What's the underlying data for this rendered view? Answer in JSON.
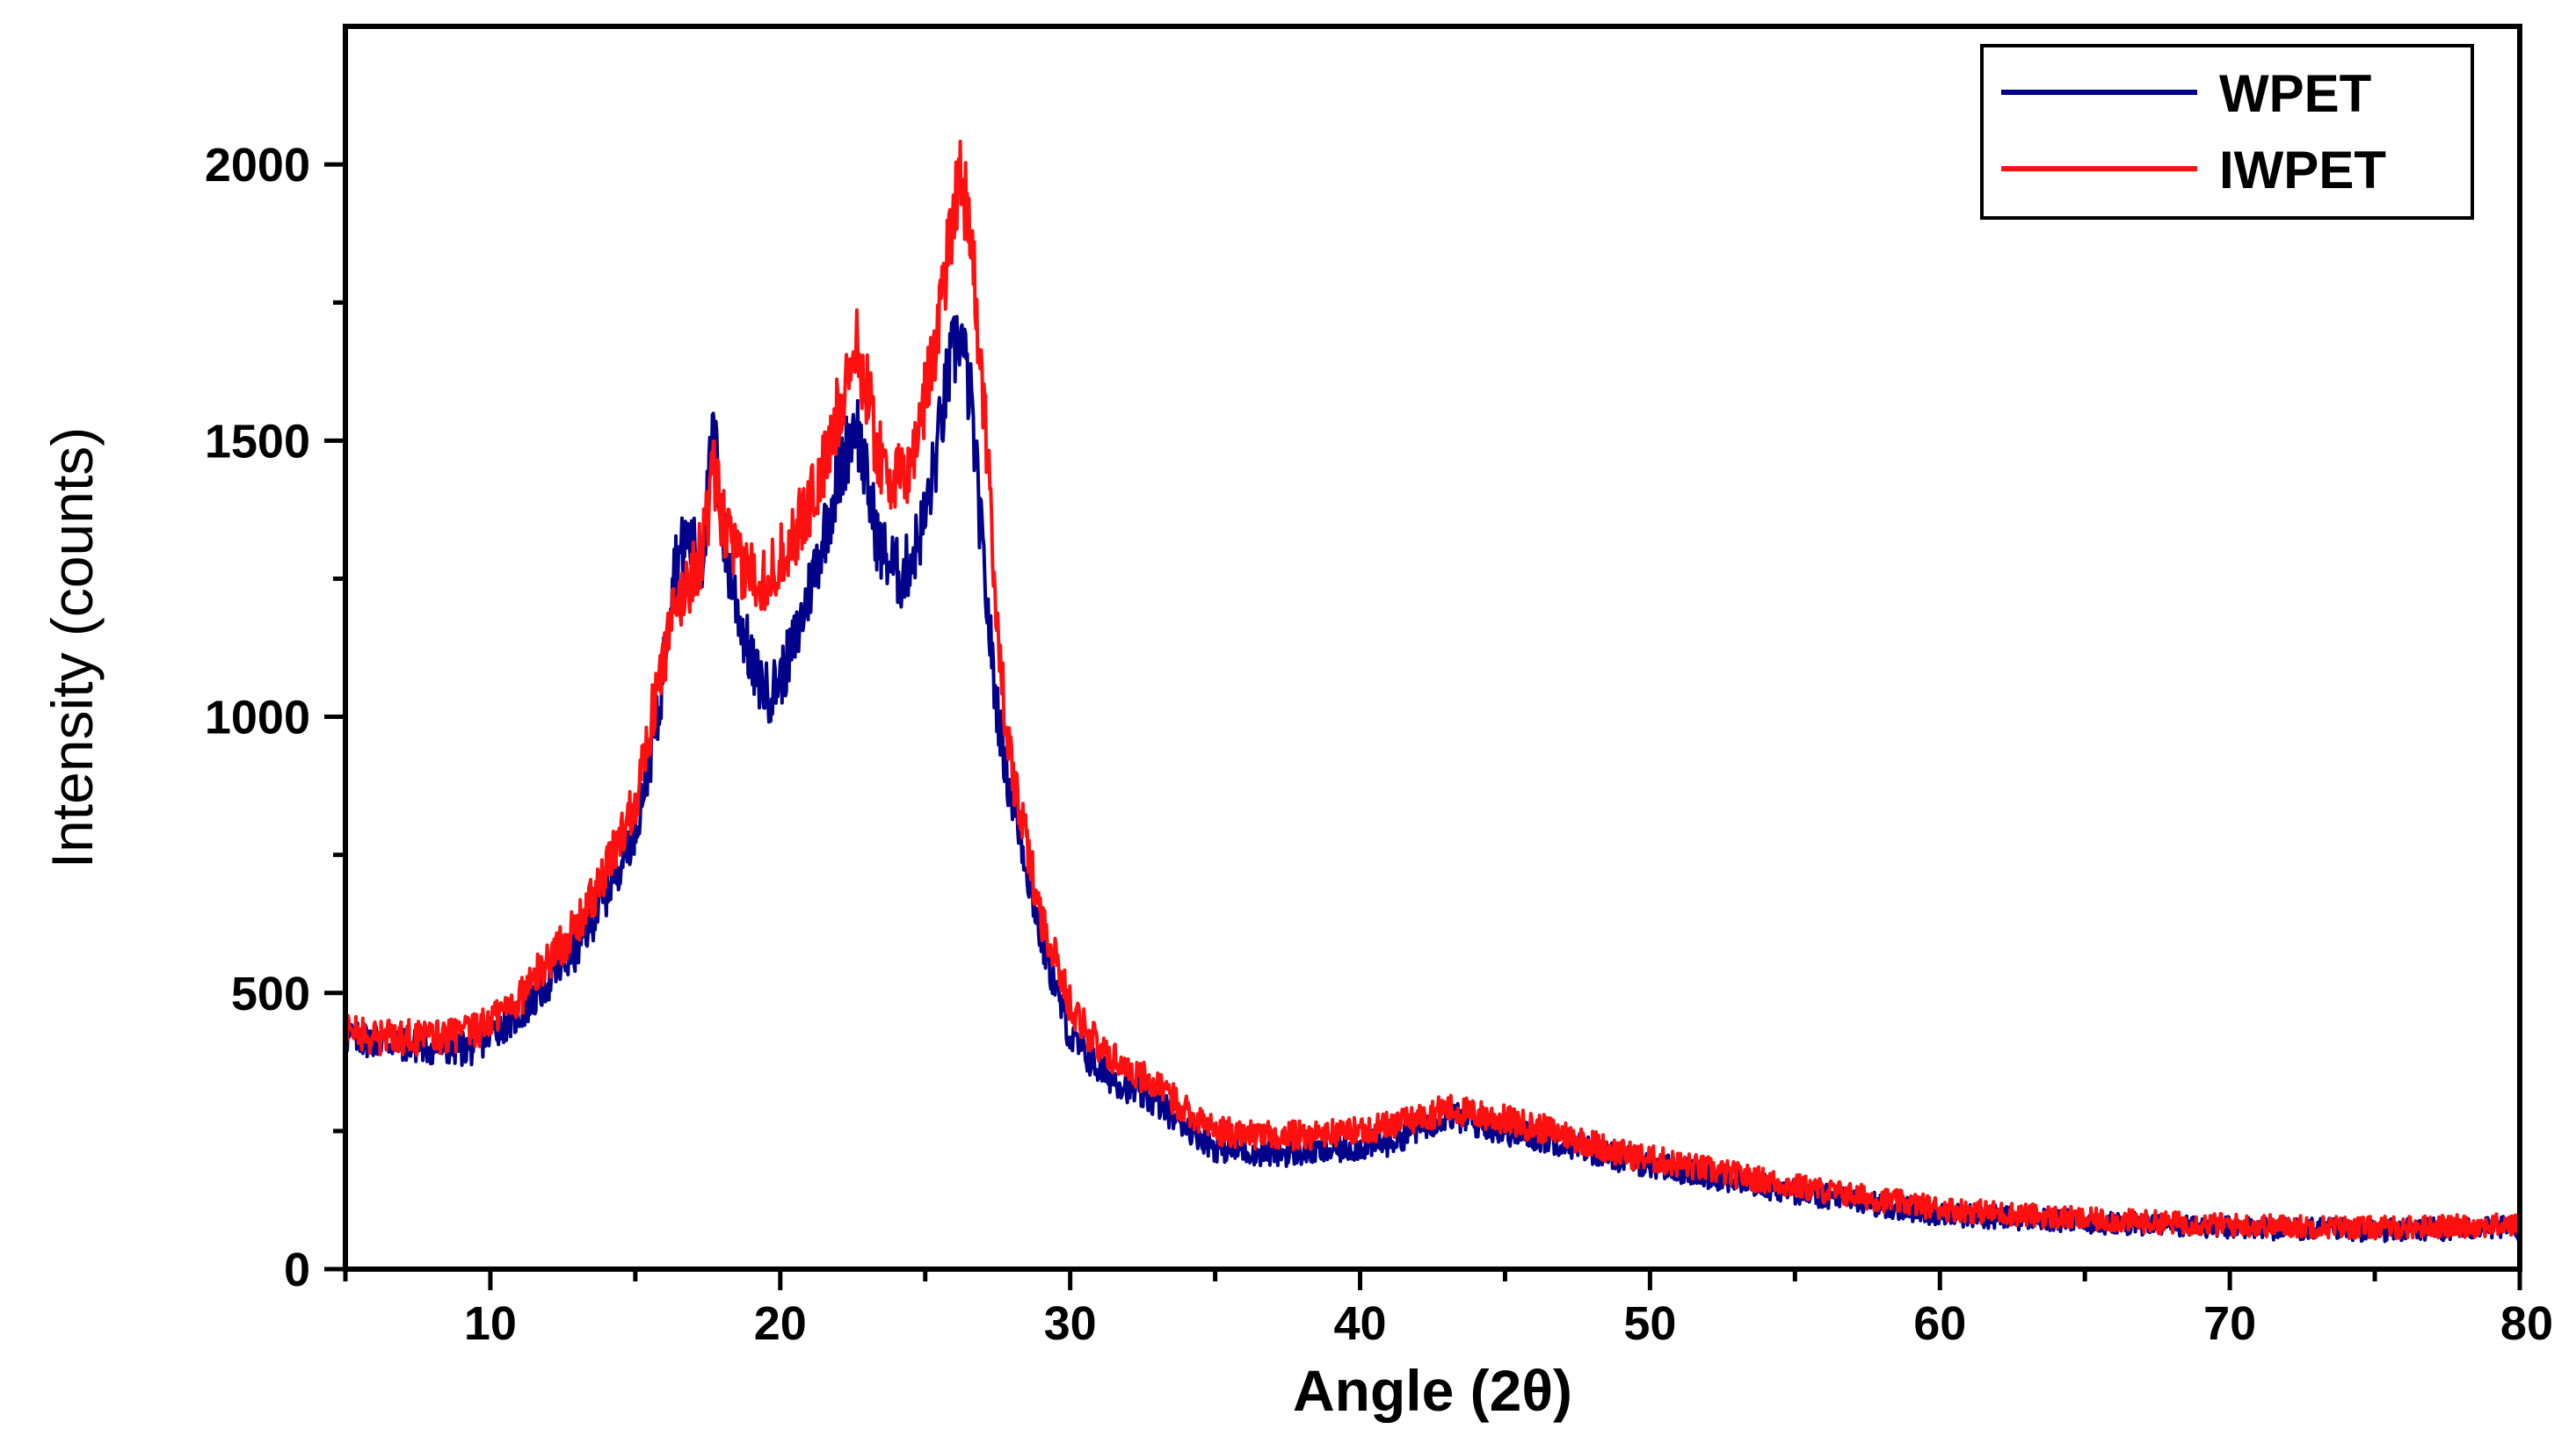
{
  "chart_data": {
    "type": "line",
    "title": "",
    "xlabel": "Angle (2θ)",
    "ylabel": "Intensity (counts)",
    "xlim": [
      5,
      80
    ],
    "ylim": [
      0,
      2250
    ],
    "x_ticks": [
      10,
      20,
      30,
      40,
      50,
      60,
      70,
      80
    ],
    "y_ticks": [
      0,
      500,
      1000,
      1500,
      2000
    ],
    "legend_position": "top-right",
    "series": [
      {
        "name": "WPET",
        "color": "#00008B",
        "x": [
          5,
          6,
          8,
          9.5,
          10,
          11,
          12,
          13,
          14,
          15,
          15.8,
          16.3,
          16.8,
          17.3,
          17.7,
          18.1,
          18.6,
          19.1,
          19.6,
          20.1,
          20.6,
          21.1,
          21.6,
          22.1,
          22.6,
          23.0,
          23.4,
          23.8,
          24.2,
          24.6,
          25.0,
          25.4,
          25.8,
          26.2,
          26.6,
          27.0,
          27.4,
          27.8,
          28.3,
          29.0,
          30.0,
          31.0,
          33.0,
          35.0,
          37.0,
          39.0,
          41.0,
          43.0,
          45.0,
          47.0,
          49.0,
          52.0,
          55.0,
          60.0,
          65.0,
          70.0,
          75.0,
          80.0
        ],
        "y": [
          420,
          415,
          400,
          400,
          430,
          460,
          520,
          580,
          680,
          800,
          1000,
          1270,
          1320,
          1280,
          1520,
          1300,
          1180,
          1080,
          1040,
          1080,
          1150,
          1250,
          1350,
          1450,
          1540,
          1420,
          1310,
          1280,
          1250,
          1300,
          1360,
          1480,
          1620,
          1700,
          1560,
          1280,
          1050,
          900,
          780,
          600,
          420,
          360,
          300,
          220,
          210,
          215,
          230,
          280,
          250,
          230,
          200,
          170,
          140,
          100,
          85,
          75,
          70,
          75
        ]
      },
      {
        "name": "IWPET",
        "color": "#FF1010",
        "x": [
          5,
          6,
          8,
          9.5,
          10,
          11,
          12,
          13,
          14,
          15,
          15.8,
          16.3,
          16.8,
          17.3,
          17.7,
          18.1,
          18.6,
          19.1,
          19.6,
          20.1,
          20.6,
          21.1,
          21.6,
          22.1,
          22.6,
          23.0,
          23.4,
          23.8,
          24.2,
          24.6,
          25.0,
          25.4,
          25.8,
          26.2,
          26.6,
          27.0,
          27.4,
          27.8,
          28.3,
          29.0,
          30.0,
          31.0,
          33.0,
          35.0,
          37.0,
          39.0,
          41.0,
          43.0,
          45.0,
          47.0,
          49.0,
          52.0,
          55.0,
          60.0,
          65.0,
          70.0,
          75.0,
          80.0
        ],
        "y": [
          430,
          420,
          420,
          430,
          450,
          490,
          560,
          620,
          720,
          850,
          1060,
          1180,
          1240,
          1300,
          1440,
          1340,
          1270,
          1260,
          1250,
          1300,
          1340,
          1400,
          1460,
          1580,
          1670,
          1590,
          1470,
          1440,
          1420,
          1480,
          1580,
          1700,
          1850,
          2010,
          1850,
          1580,
          1250,
          960,
          820,
          640,
          480,
          400,
          330,
          250,
          240,
          245,
          260,
          290,
          270,
          245,
          210,
          180,
          150,
          110,
          90,
          80,
          75,
          80
        ]
      }
    ]
  }
}
